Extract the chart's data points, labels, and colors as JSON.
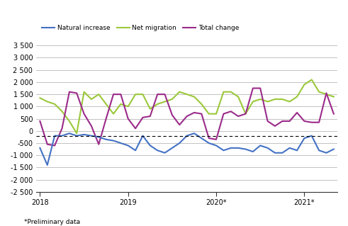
{
  "natural_increase": [
    -700,
    -1400,
    -200,
    -200,
    -100,
    -200,
    -150,
    -200,
    -250,
    -350,
    -400,
    -500,
    -600,
    -800,
    -200,
    -600,
    -800,
    -900,
    -700,
    -500,
    -200,
    -100,
    -300,
    -500,
    -600,
    -800,
    -700,
    -700,
    -750,
    -850,
    -600,
    -700,
    -900,
    -900,
    -700,
    -800,
    -300,
    -200,
    -800,
    -900,
    -750
  ],
  "net_migration": [
    1350,
    1200,
    1100,
    800,
    400,
    -100,
    1600,
    1300,
    1500,
    1100,
    700,
    1100,
    1000,
    1500,
    1500,
    900,
    1100,
    1200,
    1300,
    1600,
    1500,
    1400,
    1100,
    700,
    700,
    1600,
    1600,
    1400,
    700,
    1200,
    1300,
    1200,
    1300,
    1300,
    1200,
    1400,
    1900,
    2100,
    1600,
    1500,
    1400
  ],
  "total_change": [
    400,
    -550,
    -600,
    100,
    1600,
    1550,
    700,
    200,
    -550,
    500,
    1500,
    1500,
    500,
    100,
    550,
    600,
    1500,
    1500,
    650,
    250,
    600,
    750,
    700,
    -300,
    -350,
    700,
    800,
    600,
    700,
    1750,
    1750,
    400,
    200,
    400,
    400,
    750,
    400,
    350,
    350,
    1550,
    700
  ],
  "n_points": 41,
  "ylim": [
    -2500,
    3500
  ],
  "yticks": [
    -2500,
    -2000,
    -1500,
    -1000,
    -500,
    0,
    500,
    1000,
    1500,
    2000,
    2500,
    3000,
    3500
  ],
  "ytick_labels": [
    "-2 500",
    "-2 000",
    "-1 500",
    "-1 000",
    "-500",
    "0",
    "500",
    "1 000",
    "1 500",
    "2 000",
    "2 500",
    "3 000",
    "3 500"
  ],
  "hline_y": -200,
  "color_natural": "#4472C4",
  "color_migration": "#9BC83A",
  "color_total": "#9B2B8A",
  "legend_labels": [
    "Natural increase",
    "Net migration",
    "Total change"
  ],
  "xlabel_ticks": [
    0,
    12,
    24,
    36
  ],
  "xlabel_labels": [
    "2018",
    "2019",
    "2020*",
    "2021*"
  ],
  "note": "*Preliminary data",
  "background_color": "#ffffff",
  "grid_color": "#aaaaaa",
  "linewidth": 1.5
}
